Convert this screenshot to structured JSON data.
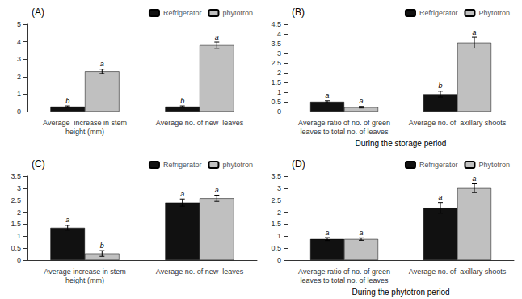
{
  "chart_data": [
    {
      "type": "bar",
      "title": "(A)",
      "categories": [
        "Average  increase in stem\nheight (mm)",
        "Average no. of new  leaves"
      ],
      "series": [
        {
          "name": "Refrigerator",
          "color": "#111111",
          "values": [
            0.28,
            0.28
          ],
          "errors": [
            0.04,
            0.04
          ],
          "letters": [
            "b",
            "b"
          ]
        },
        {
          "name": "phytotron",
          "color": "#c0c0c0",
          "values": [
            2.3,
            3.8
          ],
          "errors": [
            0.12,
            0.18
          ],
          "letters": [
            "a",
            "a"
          ]
        }
      ],
      "ylim": [
        0,
        5
      ],
      "yticks": [
        0,
        1,
        2,
        3,
        4,
        5
      ],
      "legend": "upper right",
      "grid": false
    },
    {
      "type": "bar",
      "title": "(B)",
      "categories": [
        "Average ratio of no. of green\nleaves to total no. of leaves",
        "Average no. of  axillary shoots"
      ],
      "series": [
        {
          "name": "Refrigerator",
          "color": "#111111",
          "values": [
            0.5,
            0.9
          ],
          "errors": [
            0.05,
            0.15
          ],
          "letters": [
            "a",
            "b"
          ]
        },
        {
          "name": "Phytotron",
          "color": "#c0c0c0",
          "values": [
            0.22,
            3.55
          ],
          "errors": [
            0.04,
            0.28
          ],
          "letters": [
            "a",
            "a"
          ]
        }
      ],
      "xlabel": "During the storage period",
      "ylim": [
        0,
        4.5
      ],
      "yticks": [
        0,
        0.5,
        1.0,
        1.5,
        2.0,
        2.5,
        3.0,
        3.5,
        4.0,
        4.5
      ],
      "legend": "upper right",
      "grid": false
    },
    {
      "type": "bar",
      "title": "(C)",
      "categories": [
        "Average increase in stem\nheight (mm)",
        "Average no. of new  leaves"
      ],
      "series": [
        {
          "name": "Refrigerator",
          "color": "#111111",
          "values": [
            1.35,
            2.4
          ],
          "errors": [
            0.1,
            0.15
          ],
          "letters": [
            "a",
            "a"
          ]
        },
        {
          "name": "phytotron",
          "color": "#c0c0c0",
          "values": [
            0.28,
            2.58
          ],
          "errors": [
            0.12,
            0.13
          ],
          "letters": [
            "b",
            "a"
          ]
        }
      ],
      "ylim": [
        0,
        3.5
      ],
      "yticks": [
        0,
        0.5,
        1.0,
        1.5,
        2.0,
        2.5,
        3.0,
        3.5
      ],
      "legend": "upper right",
      "grid": false
    },
    {
      "type": "bar",
      "title": "(D)",
      "categories": [
        "Average ratio of no. of green\nleaves to total no. of leaves",
        "Average no. of  axillary shoots"
      ],
      "series": [
        {
          "name": "Refrigerator",
          "color": "#111111",
          "values": [
            0.88,
            2.18
          ],
          "errors": [
            0.06,
            0.22
          ],
          "letters": [
            "a",
            "a"
          ]
        },
        {
          "name": "Phytotron",
          "color": "#c0c0c0",
          "values": [
            0.88,
            3.0
          ],
          "errors": [
            0.05,
            0.18
          ],
          "letters": [
            "a",
            "a"
          ]
        }
      ],
      "xlabel": "During the phytotron period",
      "ylim": [
        0,
        3.5
      ],
      "yticks": [
        0,
        0.5,
        1.0,
        1.5,
        2.0,
        2.5,
        3.0,
        3.5
      ],
      "legend": "upper right",
      "grid": false
    }
  ]
}
